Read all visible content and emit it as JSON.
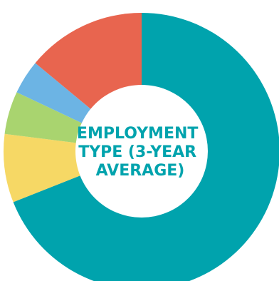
{
  "chart_data": {
    "type": "pie",
    "style": "donut",
    "center_title": [
      "EMPLOYMENT",
      "TYPE (3-YEAR",
      "AVERAGE)"
    ],
    "values": [
      69,
      8,
      5,
      4,
      14
    ],
    "colors": [
      "#00A3AD",
      "#F6D865",
      "#A9D46F",
      "#6CB4E4",
      "#E8654F"
    ],
    "start_angle_deg": 0,
    "direction": "clockwise",
    "title_color": "#00A3AD",
    "hole_color": "#ffffff"
  }
}
